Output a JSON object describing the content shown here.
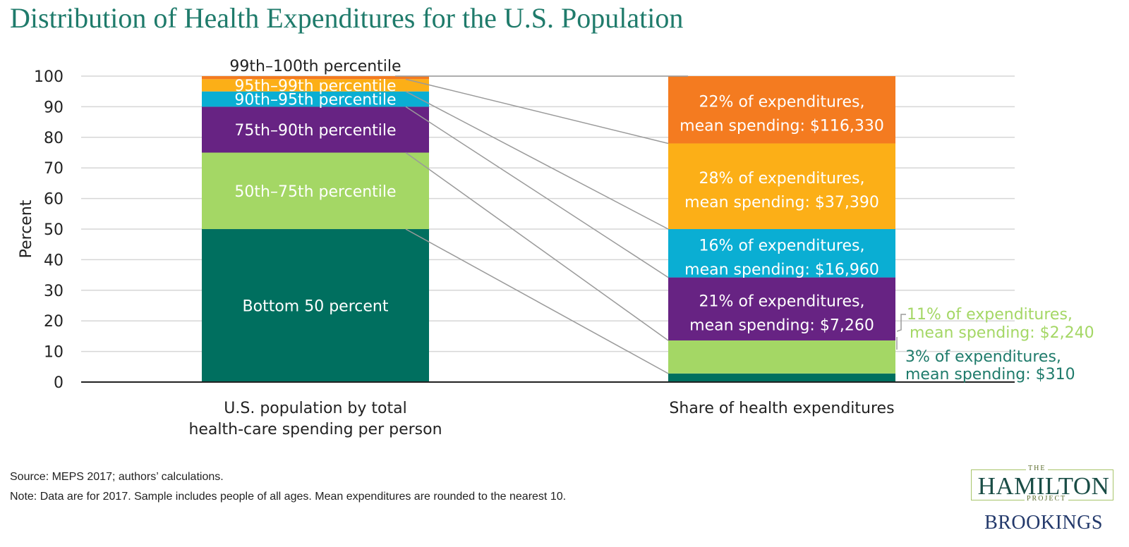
{
  "title": "Distribution of Health Expenditures for the U.S. Population",
  "chart_data": {
    "type": "bar",
    "stacked": true,
    "ylabel": "Percent",
    "ylim": [
      0,
      100
    ],
    "yticks": [
      "0",
      "10",
      "20",
      "30",
      "40",
      "50",
      "60",
      "70",
      "80",
      "90",
      "100"
    ],
    "grid": true,
    "categories": [
      [
        "U.S. population by total",
        "health-care spending per person"
      ],
      [
        "Share of health expenditures"
      ]
    ],
    "population_segments": [
      {
        "label": "Bottom 50 percent",
        "from": 0,
        "to": 50,
        "color": "#006f5f",
        "text_color": "#ffffff",
        "label_outside": false
      },
      {
        "label": "50th–75th percentile",
        "from": 50,
        "to": 75,
        "color": "#a4d765",
        "text_color": "#ffffff",
        "label_outside": false
      },
      {
        "label": "75th–90th percentile",
        "from": 75,
        "to": 90,
        "color": "#672383",
        "text_color": "#ffffff",
        "label_outside": false
      },
      {
        "label": "90th–95th percentile",
        "from": 90,
        "to": 95,
        "color": "#0aaed3",
        "text_color": "#ffffff",
        "label_outside": false
      },
      {
        "label": "95th–99th percentile",
        "from": 95,
        "to": 99,
        "color": "#fcaf17",
        "text_color": "#ffffff",
        "label_outside": false
      },
      {
        "label": "99th–100th percentile",
        "from": 99,
        "to": 100,
        "color": "#f47b20",
        "text_color": "#222222",
        "label_outside": true
      }
    ],
    "expenditure_segments": [
      {
        "from": 0,
        "to": 2.8,
        "color": "#006f5f",
        "lines": [
          "3% of expenditures,",
          "mean spending: $310"
        ],
        "text_color": "#1f7b6b",
        "outside": true
      },
      {
        "from": 2.8,
        "to": 13.6,
        "color": "#a4d765",
        "lines": [
          "11% of expenditures,",
          "mean spending: $2,240"
        ],
        "text_color": "#a4d765",
        "outside": true
      },
      {
        "from": 13.6,
        "to": 34.2,
        "color": "#672383",
        "lines": [
          "21% of expenditures,",
          "mean spending: $7,260"
        ],
        "text_color": "#ffffff",
        "outside": false
      },
      {
        "from": 34.2,
        "to": 50,
        "color": "#0aaed3",
        "lines": [
          "16% of expenditures,",
          "mean spending: $16,960"
        ],
        "text_color": "#ffffff",
        "outside": false
      },
      {
        "from": 50,
        "to": 78,
        "color": "#fcaf17",
        "lines": [
          "28% of expenditures,",
          "mean spending: $37,390"
        ],
        "text_color": "#ffffff",
        "outside": false
      },
      {
        "from": 78,
        "to": 100,
        "color": "#f47b20",
        "lines": [
          "22% of expenditures,",
          "mean spending: $116,330"
        ],
        "text_color": "#ffffff",
        "outside": false
      }
    ],
    "connectors": [
      {
        "from": 50,
        "to": 2.8
      },
      {
        "from": 75,
        "to": 13.6
      },
      {
        "from": 90,
        "to": 34.2
      },
      {
        "from": 95,
        "to": 50
      },
      {
        "from": 99,
        "to": 78
      },
      {
        "from": 100,
        "to": 100
      }
    ]
  },
  "footer": {
    "source": "Source: MEPS 2017; authors’ calculations.",
    "note": "Note: Data are for 2017. Sample includes people of all ages. Mean expenditures are rounded to the nearest 10."
  },
  "logo": {
    "the": "THE",
    "hamilton": "HAMILTON",
    "project": "PROJECT",
    "brookings": "BROOKINGS"
  }
}
